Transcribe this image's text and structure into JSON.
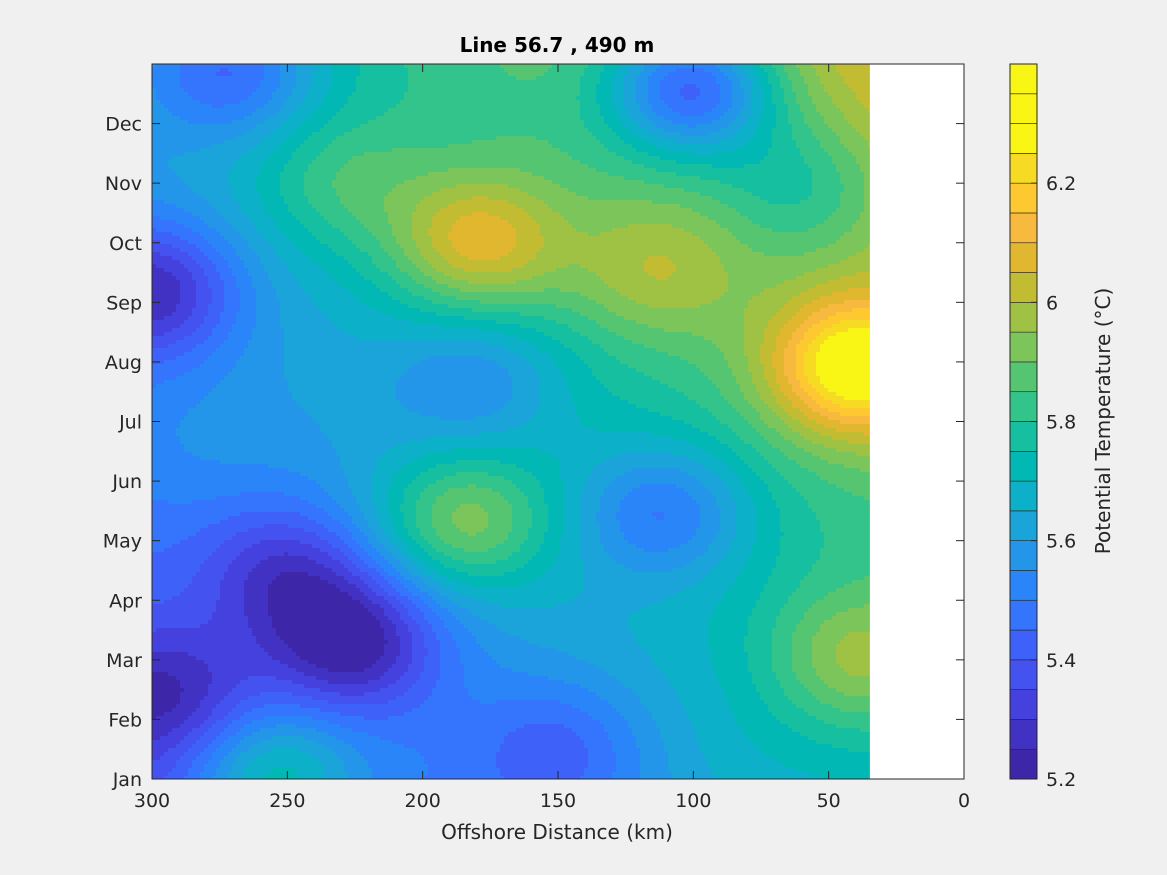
{
  "chart_data": {
    "type": "heatmap",
    "subtype": "filled-contour",
    "title": "Line 56.7 , 490 m",
    "xlabel": "Offshore Distance (km)",
    "ylabel": "",
    "xlim": [
      300,
      0
    ],
    "x_direction": "reversed",
    "ylim": [
      "Jan",
      "Dec"
    ],
    "x_ticks": [
      300,
      250,
      200,
      150,
      100,
      50,
      0
    ],
    "y_ticks": [
      "Jan",
      "Feb",
      "Mar",
      "Apr",
      "May",
      "Jun",
      "Jul",
      "Aug",
      "Sep",
      "Oct",
      "Nov",
      "Dec"
    ],
    "data_extent_km": [
      300,
      35
    ],
    "grid": false,
    "colorbar": {
      "label": "Potential Temperature (°C)",
      "range": [
        5.2,
        6.4
      ],
      "ticks": [
        "5.2",
        "5.4",
        "5.6",
        "5.8",
        "6",
        "6.2"
      ],
      "levels": [
        5.2,
        5.25,
        5.3,
        5.35,
        5.4,
        5.45,
        5.5,
        5.55,
        5.6,
        5.65,
        5.7,
        5.75,
        5.8,
        5.85,
        5.9,
        5.95,
        6.0,
        6.05,
        6.1,
        6.15,
        6.2,
        6.25,
        6.3,
        6.35,
        6.4
      ],
      "colormap": "parula",
      "colors": [
        "#3e26a8",
        "#4232c3",
        "#4541de",
        "#4452f0",
        "#3e62f9",
        "#3574fd",
        "#2a86f8",
        "#2496e9",
        "#1aa4da",
        "#0cb0c8",
        "#02b8b4",
        "#16bfa0",
        "#32c48b",
        "#56c572",
        "#7cc55b",
        "#a0c244",
        "#c2bc33",
        "#e0b72f",
        "#f8ba3e",
        "#fdc830",
        "#f6da23",
        "#f9f514"
      ],
      "position": "right"
    },
    "fields": [
      {
        "x_km": 295,
        "month": 2.4,
        "value": 5.22
      },
      {
        "x_km": 300,
        "month": 9.2,
        "value": 5.25
      },
      {
        "x_km": 225,
        "month": 3.3,
        "value": 5.21
      },
      {
        "x_km": 250,
        "month": 4.5,
        "value": 5.31
      },
      {
        "x_km": 180,
        "month": 10.0,
        "value": 6.08
      },
      {
        "x_km": 115,
        "month": 9.5,
        "value": 6.0
      },
      {
        "x_km": 185,
        "month": 5.3,
        "value": 5.92
      },
      {
        "x_km": 180,
        "month": 7.7,
        "value": 5.55
      },
      {
        "x_km": 110,
        "month": 5.5,
        "value": 5.5
      },
      {
        "x_km": 100,
        "month": 12.6,
        "value": 5.45
      },
      {
        "x_km": 40,
        "month": 7.9,
        "value": 6.36
      },
      {
        "x_km": 40,
        "month": 3.0,
        "value": 5.97
      },
      {
        "x_km": 150,
        "month": 1.5,
        "value": 5.42
      },
      {
        "x_km": 60,
        "month": 11.0,
        "value": 5.8
      },
      {
        "x_km": 255,
        "month": 1.0,
        "value": 5.72
      },
      {
        "x_km": 230,
        "month": 11.0,
        "value": 5.85
      },
      {
        "x_km": 290,
        "month": 6.5,
        "value": 5.55
      },
      {
        "x_km": 80,
        "month": 1.3,
        "value": 5.68
      },
      {
        "x_km": 270,
        "month": 12.9,
        "value": 5.45
      }
    ]
  }
}
